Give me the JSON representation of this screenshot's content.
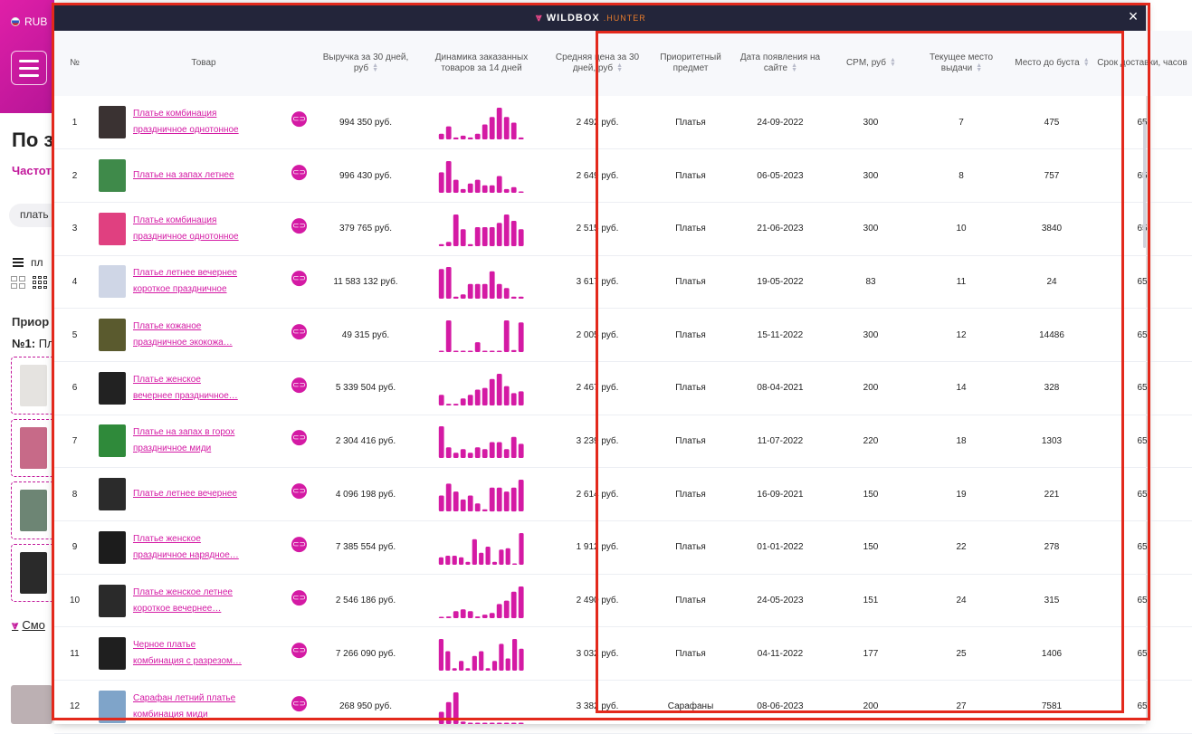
{
  "background": {
    "currency": "RUB",
    "title_fragment": "По з",
    "subtitle_fragment": "Частот",
    "chip_fragment": "плать",
    "filter_fragment": "пл",
    "priority_fragment": "Приор",
    "priority_line_num": "№1:",
    "priority_line_text": "Пл",
    "more_link": "Смо"
  },
  "modal": {
    "brand": "WILDBOX",
    "brand_suffix": ".HUNTER",
    "close_label": "×"
  },
  "table": {
    "columns": [
      {
        "key": "num",
        "label": "№",
        "sortable": false
      },
      {
        "key": "product",
        "label": "Товар",
        "sortable": false
      },
      {
        "key": "revenue",
        "label": "Выручка за 30 дней, руб",
        "sortable": true
      },
      {
        "key": "dynamics",
        "label": "Динамика заказанных товаров за 14 дней",
        "sortable": false
      },
      {
        "key": "avg_price",
        "label": "Средняя цена за 30 дней, руб",
        "sortable": true
      },
      {
        "key": "priority",
        "label": "Приоритетный предмет",
        "sortable": false
      },
      {
        "key": "date",
        "label": "Дата появления на сайте",
        "sortable": true
      },
      {
        "key": "cpm",
        "label": "CPM, руб",
        "sortable": true
      },
      {
        "key": "place",
        "label": "Текущее место выдачи",
        "sortable": true
      },
      {
        "key": "boost",
        "label": "Место до буста",
        "sortable": true
      },
      {
        "key": "delivery",
        "label": "Срок доставки, часов",
        "sortable": false
      }
    ],
    "rows": [
      {
        "num": "1",
        "title": "Платье комбинация праздничное однотонное",
        "revenue": "994 350 руб.",
        "spark": [
          3,
          7,
          1,
          2,
          1,
          3,
          8,
          12,
          17,
          12,
          9,
          1
        ],
        "avg_price": "2 492 руб.",
        "priority": "Платья",
        "date": "24-09-2022",
        "cpm": "300",
        "place": "7",
        "boost": "475",
        "delivery": "65",
        "thumb_color": "#3a3232"
      },
      {
        "num": "2",
        "title": "Платье на запах летнее",
        "revenue": "996 430 руб.",
        "spark": [
          11,
          17,
          7,
          2,
          5,
          7,
          4,
          4,
          9,
          2,
          3,
          0
        ],
        "avg_price": "2 649 руб.",
        "priority": "Платья",
        "date": "06-05-2023",
        "cpm": "300",
        "place": "8",
        "boost": "757",
        "delivery": "65",
        "thumb_color": "#3f8a4a"
      },
      {
        "num": "3",
        "title": "Платье комбинация праздничное однотонное",
        "revenue": "379 765 руб.",
        "spark": [
          1,
          2,
          15,
          8,
          1,
          9,
          9,
          9,
          11,
          15,
          12,
          8
        ],
        "avg_price": "2 515 руб.",
        "priority": "Платья",
        "date": "21-06-2023",
        "cpm": "300",
        "place": "10",
        "boost": "3840",
        "delivery": "65",
        "thumb_color": "#e04080"
      },
      {
        "num": "4",
        "title": "Платье летнее вечернее короткое праздничное",
        "revenue": "11 583 132 руб.",
        "spark": [
          14,
          15,
          1,
          2,
          7,
          7,
          7,
          13,
          7,
          5,
          1,
          1
        ],
        "avg_price": "3 617 руб.",
        "priority": "Платья",
        "date": "19-05-2022",
        "cpm": "83",
        "place": "11",
        "boost": "24",
        "delivery": "65",
        "thumb_color": "#cfd6e6"
      },
      {
        "num": "5",
        "title": "Платье кожаное праздничное экокожа…",
        "revenue": "49 315 руб.",
        "spark": [
          0,
          16,
          0,
          0,
          0,
          5,
          0,
          0,
          0,
          16,
          1,
          15
        ],
        "avg_price": "2 005 руб.",
        "priority": "Платья",
        "date": "15-11-2022",
        "cpm": "300",
        "place": "12",
        "boost": "14486",
        "delivery": "65",
        "thumb_color": "#5a5a2e"
      },
      {
        "num": "6",
        "title": "Платье женское вечернее праздничное…",
        "revenue": "5 339 504 руб.",
        "spark": [
          6,
          1,
          1,
          4,
          6,
          9,
          10,
          15,
          18,
          11,
          7,
          8
        ],
        "avg_price": "2 467 руб.",
        "priority": "Платья",
        "date": "08-04-2021",
        "cpm": "200",
        "place": "14",
        "boost": "328",
        "delivery": "65",
        "thumb_color": "#222"
      },
      {
        "num": "7",
        "title": "Платье на запах в горох праздничное миди",
        "revenue": "2 304 416 руб.",
        "spark": [
          18,
          6,
          3,
          5,
          3,
          6,
          5,
          9,
          9,
          5,
          12,
          8
        ],
        "avg_price": "3 239 руб.",
        "priority": "Платья",
        "date": "11-07-2022",
        "cpm": "220",
        "place": "18",
        "boost": "1303",
        "delivery": "65",
        "thumb_color": "#2f8a3a"
      },
      {
        "num": "8",
        "title": "Платье летнее вечернее",
        "revenue": "4 096 198 руб.",
        "spark": [
          8,
          14,
          10,
          6,
          8,
          4,
          1,
          12,
          12,
          10,
          12,
          16
        ],
        "avg_price": "2 614 руб.",
        "priority": "Платья",
        "date": "16-09-2021",
        "cpm": "150",
        "place": "19",
        "boost": "221",
        "delivery": "65",
        "thumb_color": "#2b2b2b"
      },
      {
        "num": "9",
        "title": "Платье женское праздничное нарядное…",
        "revenue": "7 385 554 руб.",
        "spark": [
          5,
          6,
          6,
          5,
          2,
          17,
          8,
          12,
          2,
          10,
          11,
          0,
          21
        ],
        "avg_price": "1 912 руб.",
        "priority": "Платья",
        "date": "01-01-2022",
        "cpm": "150",
        "place": "22",
        "boost": "278",
        "delivery": "65",
        "thumb_color": "#1c1c1c"
      },
      {
        "num": "10",
        "title": "Платье женское летнее короткое вечернее…",
        "revenue": "2 546 186 руб.",
        "spark": [
          0,
          1,
          4,
          5,
          4,
          1,
          2,
          3,
          8,
          10,
          15,
          18
        ],
        "avg_price": "2 490 руб.",
        "priority": "Платья",
        "date": "24-05-2023",
        "cpm": "151",
        "place": "24",
        "boost": "315",
        "delivery": "65",
        "thumb_color": "#2a2a2a"
      },
      {
        "num": "11",
        "title": "Черное платье комбинация с разрезом…",
        "revenue": "7 266 090 руб.",
        "spark": [
          13,
          8,
          1,
          4,
          1,
          6,
          8,
          1,
          4,
          11,
          5,
          13,
          9
        ],
        "avg_price": "3 032 руб.",
        "priority": "Платья",
        "date": "04-11-2022",
        "cpm": "177",
        "place": "25",
        "boost": "1406",
        "delivery": "65",
        "thumb_color": "#1f1f1f"
      },
      {
        "num": "12",
        "title": "Сарафан летний платье комбинация миди",
        "revenue": "268 950 руб.",
        "spark": [
          5,
          9,
          13,
          1,
          0,
          0,
          0,
          0,
          0,
          0,
          0,
          0
        ],
        "avg_price": "3 382 руб.",
        "priority": "Сарафаны",
        "date": "08-06-2023",
        "cpm": "200",
        "place": "27",
        "boost": "7581",
        "delivery": "65",
        "thumb_color": "#7fa4c9"
      }
    ]
  },
  "colors": {
    "accent": "#d41aa4",
    "header_bg": "#23253a",
    "annotation": "#e3291c"
  }
}
